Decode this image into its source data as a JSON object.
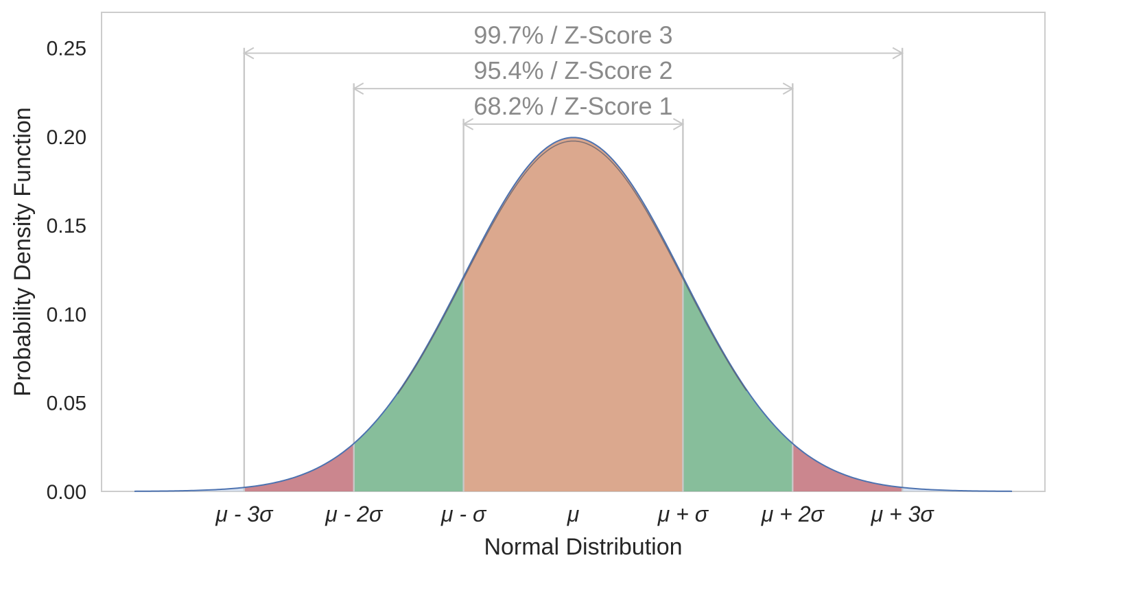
{
  "chart_data": {
    "type": "area",
    "title": "",
    "xlabel": "Normal Distribution",
    "ylabel": "Probability Density Function",
    "xlim": [
      -4.3,
      4.3
    ],
    "ylim": [
      0,
      0.27
    ],
    "grid": false,
    "distribution": {
      "mean": 0,
      "std": 2
    },
    "x_ticks": [
      {
        "value": -3,
        "label": "μ - 3σ"
      },
      {
        "value": -2,
        "label": "μ - 2σ"
      },
      {
        "value": -1,
        "label": "μ - σ"
      },
      {
        "value": 0,
        "label": "μ"
      },
      {
        "value": 1,
        "label": "μ + σ"
      },
      {
        "value": 2,
        "label": "μ + 2σ"
      },
      {
        "value": 3,
        "label": "μ + 3σ"
      }
    ],
    "y_ticks": [
      {
        "value": 0.0,
        "label": "0.00"
      },
      {
        "value": 0.05,
        "label": "0.05"
      },
      {
        "value": 0.1,
        "label": "0.10"
      },
      {
        "value": 0.15,
        "label": "0.15"
      },
      {
        "value": 0.2,
        "label": "0.20"
      },
      {
        "value": 0.25,
        "label": "0.25"
      }
    ],
    "curve": {
      "x_sigma": [
        -4,
        -3.5,
        -3,
        -2.5,
        -2,
        -1.5,
        -1,
        -0.5,
        0,
        0.5,
        1,
        1.5,
        2,
        2.5,
        3,
        3.5,
        4
      ],
      "y": [
        0.0007,
        0.0022,
        0.0022,
        0.0088,
        0.027,
        0.0648,
        0.121,
        0.176,
        0.1995,
        0.176,
        0.121,
        0.0648,
        0.027,
        0.0088,
        0.0022,
        0.0022,
        0.0007
      ]
    },
    "regions": [
      {
        "from": -3,
        "to": -2,
        "color": "#c44e52"
      },
      {
        "from": -2,
        "to": -1,
        "color": "#55a868"
      },
      {
        "from": -1,
        "to": 1,
        "color": "#dd8452"
      },
      {
        "from": 1,
        "to": 2,
        "color": "#55a868"
      },
      {
        "from": 2,
        "to": 3,
        "color": "#c44e52"
      }
    ],
    "brackets": [
      {
        "label": "68.2% / Z-Score 1",
        "from": -1,
        "to": 1,
        "y": 0.207,
        "line_top": 0.21
      },
      {
        "label": "95.4% / Z-Score 2",
        "from": -2,
        "to": 2,
        "y": 0.227,
        "line_top": 0.23
      },
      {
        "label": "99.7% / Z-Score 3",
        "from": -3,
        "to": 3,
        "y": 0.247,
        "line_top": 0.25
      }
    ],
    "colors": {
      "curve": "#4c72b0",
      "curve_fill": "#c8d4e8",
      "guide": "#c8c8c8",
      "axes_frame": "#cccccc",
      "bracket_text": "#8a8a8a"
    }
  }
}
